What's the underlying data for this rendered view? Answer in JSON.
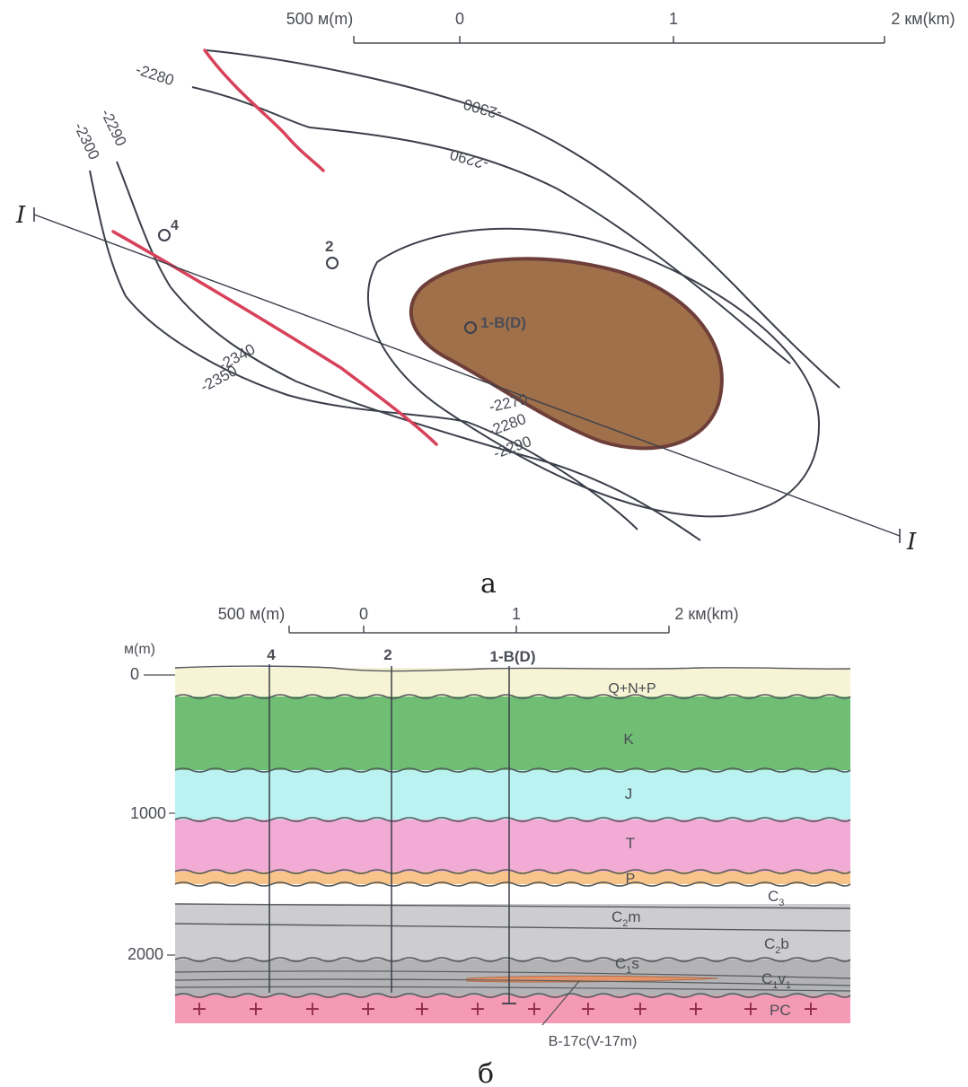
{
  "map": {
    "scale": {
      "ticks": [
        "500 м(m)",
        "0",
        "1",
        "2 км(km)"
      ]
    },
    "contours": {
      "c2280_top": "-2280",
      "c2300_top": "-2300",
      "c2290_top": "-2290",
      "c2290_left": "-2290",
      "c2300_left": "-2300",
      "c2340": "-2340",
      "c2350": "-2350",
      "c2270": "-2270",
      "c2280_bottom": "-2280",
      "c2290_bottom": "-2290"
    },
    "wells": {
      "w4": "4",
      "w2": "2",
      "w1": "1-B(D)"
    },
    "profile_label": "I",
    "caption": "а",
    "colors": {
      "deposit_fill": "#a0704a",
      "deposit_edge": "#6e3f3a",
      "fault": "#d8415a"
    }
  },
  "section": {
    "scale": {
      "ticks": [
        "500 м(m)",
        "0",
        "1",
        "2 км(km)"
      ]
    },
    "depth_axis": {
      "unit": "м(m)",
      "ticks": [
        "0",
        "1000",
        "2000"
      ]
    },
    "wells": {
      "w4": "4",
      "w2": "2",
      "w1": "1-B(D)"
    },
    "layers": {
      "qnp": "Q+N+P",
      "k": "K",
      "j": "J",
      "t": "T",
      "p": "P",
      "c3": "C",
      "c3_sub": "3",
      "c2m": "C",
      "c2m_sub": "2",
      "c2m_suffix": "m",
      "c2b": "C",
      "c2b_sub": "2",
      "c2b_suffix": "b",
      "c1s": "C",
      "c1s_sub": "1",
      "c1s_suffix": "s",
      "c1v": "C",
      "c1v_sub": "1",
      "c1v_mid": "v",
      "c1v_sub2": "1",
      "pc": "PC",
      "reservoir": "B-17c(V-17m)"
    },
    "colors": {
      "qnp": "#f6f4d4",
      "k": "#6fbe74",
      "j": "#b9f2f0",
      "t": "#f2abd4",
      "p": "#f8c48a",
      "c3": "#ffffff",
      "c2": "#cdcdcf",
      "c1": "#b3b3b5",
      "pc": "#f59ab5",
      "reservoir": "#e4946a"
    },
    "caption": "б"
  }
}
